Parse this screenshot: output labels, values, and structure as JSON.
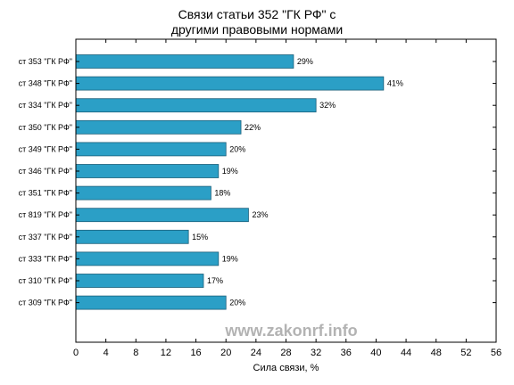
{
  "chart_data": {
    "type": "bar",
    "orientation": "horizontal",
    "title_lines": [
      "Связи статьи 352 \"ГК РФ\" с",
      "другими правовыми нормами"
    ],
    "xlabel": "Сила связи, %",
    "ylabel": "",
    "xlim": [
      0,
      56
    ],
    "xticks": [
      0,
      4,
      8,
      12,
      16,
      20,
      24,
      28,
      32,
      36,
      40,
      44,
      48,
      52,
      56
    ],
    "categories": [
      "ст 353 \"ГК РФ\"",
      "ст 348 \"ГК РФ\"",
      "ст 334 \"ГК РФ\"",
      "ст 350 \"ГК РФ\"",
      "ст 349 \"ГК РФ\"",
      "ст 346 \"ГК РФ\"",
      "ст 351 \"ГК РФ\"",
      "ст 819 \"ГК РФ\"",
      "ст 337 \"ГК РФ\"",
      "ст 333 \"ГК РФ\"",
      "ст 310 \"ГК РФ\"",
      "ст 309 \"ГК РФ\""
    ],
    "values": [
      29,
      41,
      32,
      22,
      20,
      19,
      18,
      23,
      15,
      19,
      17,
      20
    ],
    "value_labels": [
      "29%",
      "41%",
      "32%",
      "22%",
      "20%",
      "19%",
      "18%",
      "23%",
      "15%",
      "19%",
      "17%",
      "20%"
    ],
    "bar_color": "#2b9fc6",
    "bar_edge_color": "#1a5f7a",
    "grid": false,
    "legend": "none",
    "watermark": "www.zakonrf.info",
    "watermark_color": "#b3b3b3"
  }
}
